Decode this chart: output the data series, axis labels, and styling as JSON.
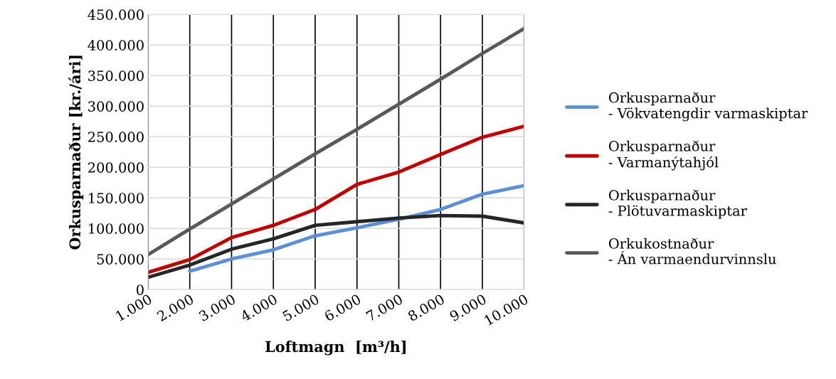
{
  "chart_data": {
    "type": "line",
    "xlabel": "Loftmagn  [m³/h]",
    "ylabel": "Orkusparnaður [kr./ári]",
    "categories": [
      "1.000",
      "2.000",
      "3.000",
      "4.000",
      "5.000",
      "6.000",
      "7.000",
      "8.000",
      "9.000",
      "10.000"
    ],
    "series": [
      {
        "name": "Orkusparnaður\n- Vökvatengdir varmaskiptar",
        "color": "#5b8fd6",
        "values": [
          null,
          30000,
          50000,
          65000,
          88000,
          101000,
          115000,
          131000,
          156000,
          170000
        ]
      },
      {
        "name": "Orkusparnaður\n- Varmanýtahjól",
        "color": "#c00000",
        "values": [
          28000,
          49000,
          85000,
          105000,
          131000,
          172000,
          192000,
          221000,
          249000,
          267000
        ]
      },
      {
        "name": "Orkusparnaður\n- Plötuvarmaskiptar",
        "color": "#262626",
        "values": [
          20000,
          40000,
          66000,
          83000,
          105000,
          111000,
          117000,
          121000,
          120000,
          109000
        ]
      },
      {
        "name": "Orkukostnaður\n- Án varmaendurvinnslu",
        "color": "#595959",
        "values": [
          57000,
          99000,
          140000,
          181000,
          222000,
          262000,
          303000,
          344000,
          386000,
          427000
        ]
      }
    ],
    "ylim": [
      0,
      450000
    ],
    "yticks": [
      0,
      {
        "value": 50000,
        "label": "50.000"
      },
      {
        "value": 100000,
        "label": "100.000"
      },
      {
        "value": 150000,
        "label": "150.000"
      },
      {
        "value": 200000,
        "label": "200.000"
      },
      {
        "value": 250000,
        "label": "250.000"
      },
      {
        "value": 300000,
        "label": "300.000"
      },
      {
        "value": 350000,
        "label": "350.000"
      },
      {
        "value": 400000,
        "label": "400.000"
      },
      {
        "value": 450000,
        "label": "450.000"
      }
    ],
    "grid": true,
    "legend": "right",
    "marker": "none",
    "line_style": "solid"
  }
}
